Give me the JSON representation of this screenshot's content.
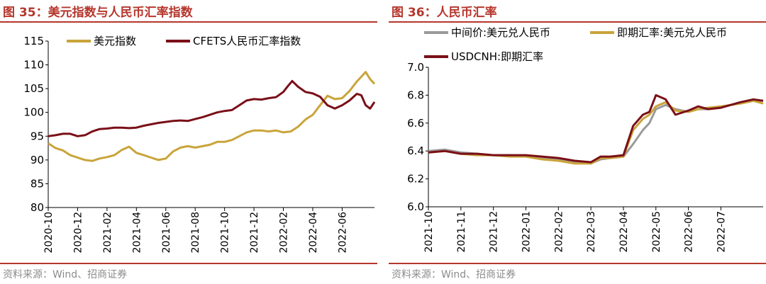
{
  "left": {
    "title": "图 35：美元指数与人民币汇率指数",
    "source": "资料来源：Wind、招商证券"
  },
  "right": {
    "title": "图 36：人民币汇率",
    "source": "资料来源：Wind、招商证券"
  },
  "colors": {
    "accent": "#b5362c",
    "gold": "#c9a43a",
    "darkred": "#7a0f18",
    "gray": "#9a9a9a"
  },
  "chart_data": [
    {
      "type": "line",
      "title": "美元指数与人民币汇率指数",
      "ylim": [
        80,
        115
      ],
      "yticks": [
        80,
        85,
        90,
        95,
        100,
        105,
        110,
        115
      ],
      "xlim": [
        0,
        22.2
      ],
      "xticks": [
        {
          "pos": 0,
          "label": "2020-10"
        },
        {
          "pos": 2,
          "label": "2020-12"
        },
        {
          "pos": 4,
          "label": "2021-02"
        },
        {
          "pos": 6,
          "label": "2021-04"
        },
        {
          "pos": 8,
          "label": "2021-06"
        },
        {
          "pos": 10,
          "label": "2021-08"
        },
        {
          "pos": 12,
          "label": "2021-10"
        },
        {
          "pos": 14,
          "label": "2021-12"
        },
        {
          "pos": 16,
          "label": "2022-02"
        },
        {
          "pos": 18,
          "label": "2022-04"
        },
        {
          "pos": 20,
          "label": "2022-06"
        }
      ],
      "legend_position": "top",
      "series": [
        {
          "name": "美元指数",
          "color": "#c9a43a",
          "x": [
            0,
            0.5,
            1,
            1.5,
            2,
            2.5,
            3,
            3.5,
            4,
            4.5,
            5,
            5.5,
            6,
            6.5,
            7,
            7.5,
            8,
            8.5,
            9,
            9.5,
            10,
            10.5,
            11,
            11.5,
            12,
            12.5,
            13,
            13.5,
            14,
            14.5,
            15,
            15.5,
            16,
            16.5,
            17,
            17.5,
            18,
            18.5,
            19,
            19.5,
            20,
            20.5,
            21,
            21.3,
            21.6,
            21.9,
            22.2
          ],
          "values": [
            93.5,
            92.5,
            92.0,
            91.0,
            90.5,
            90.0,
            89.8,
            90.3,
            90.6,
            91.0,
            92.1,
            92.8,
            91.5,
            91.0,
            90.5,
            90.0,
            90.3,
            91.8,
            92.6,
            92.9,
            92.6,
            92.9,
            93.2,
            93.8,
            93.8,
            94.2,
            95.0,
            95.8,
            96.2,
            96.2,
            96.0,
            96.2,
            95.8,
            96.0,
            97.0,
            98.5,
            99.5,
            101.5,
            103.5,
            102.8,
            103.0,
            104.5,
            106.5,
            107.5,
            108.5,
            107.0,
            106.0
          ]
        },
        {
          "name": "CFETS人民币汇率指数",
          "color": "#7a0f18",
          "x": [
            0,
            0.5,
            1,
            1.5,
            2,
            2.5,
            3,
            3.5,
            4,
            4.5,
            5,
            5.5,
            6,
            6.5,
            7,
            7.5,
            8,
            8.5,
            9,
            9.5,
            10,
            10.5,
            11,
            11.5,
            12,
            12.5,
            13,
            13.5,
            14,
            14.5,
            15,
            15.5,
            16,
            16.3,
            16.6,
            17,
            17.5,
            18,
            18.5,
            19,
            19.5,
            20,
            20.5,
            21,
            21.3,
            21.6,
            21.9,
            22.2
          ],
          "values": [
            95.0,
            95.2,
            95.5,
            95.5,
            95.0,
            95.2,
            96.0,
            96.5,
            96.6,
            96.8,
            96.8,
            96.7,
            96.8,
            97.2,
            97.5,
            97.8,
            98.0,
            98.2,
            98.3,
            98.2,
            98.6,
            99.0,
            99.5,
            100.0,
            100.3,
            100.5,
            101.5,
            102.5,
            102.8,
            102.7,
            103.0,
            103.2,
            104.3,
            105.5,
            106.6,
            105.4,
            104.3,
            104.0,
            103.3,
            101.5,
            100.8,
            101.5,
            102.5,
            103.9,
            103.6,
            101.5,
            100.8,
            102.2
          ]
        }
      ]
    },
    {
      "type": "line",
      "title": "人民币汇率",
      "ylim": [
        6.0,
        7.0
      ],
      "yticks": [
        6.0,
        6.2,
        6.4,
        6.6,
        6.8,
        7.0
      ],
      "ytick_labels": [
        "6.0",
        "6.2",
        "6.4",
        "6.6",
        "6.8",
        "7.0"
      ],
      "xlim": [
        0,
        10.3
      ],
      "xticks": [
        {
          "pos": 0,
          "label": "2021-10"
        },
        {
          "pos": 1,
          "label": "2021-11"
        },
        {
          "pos": 2,
          "label": "2021-12"
        },
        {
          "pos": 3,
          "label": "2022-01"
        },
        {
          "pos": 4,
          "label": "2022-02"
        },
        {
          "pos": 5,
          "label": "2022-03"
        },
        {
          "pos": 6,
          "label": "2022-04"
        },
        {
          "pos": 7,
          "label": "2022-05"
        },
        {
          "pos": 8,
          "label": "2022-06"
        },
        {
          "pos": 9,
          "label": "2022-07"
        }
      ],
      "legend_position": "top",
      "series": [
        {
          "name": "中间价:美元兑人民币",
          "color": "#9a9a9a",
          "x": [
            0,
            0.5,
            1,
            1.5,
            2,
            2.5,
            3,
            3.5,
            4,
            4.5,
            5,
            5.3,
            5.6,
            6,
            6.3,
            6.6,
            6.8,
            7,
            7.3,
            7.6,
            8,
            8.3,
            8.6,
            9,
            9.3,
            9.6,
            10,
            10.3
          ],
          "values": [
            6.4,
            6.41,
            6.39,
            6.38,
            6.37,
            6.37,
            6.36,
            6.35,
            6.34,
            6.32,
            6.31,
            6.34,
            6.35,
            6.36,
            6.45,
            6.55,
            6.6,
            6.7,
            6.73,
            6.7,
            6.68,
            6.7,
            6.7,
            6.71,
            6.73,
            6.74,
            6.76,
            6.76
          ]
        },
        {
          "name": "即期汇率:美元兑人民币",
          "color": "#c9a43a",
          "x": [
            0,
            0.5,
            1,
            1.5,
            2,
            2.5,
            3,
            3.5,
            4,
            4.5,
            5,
            5.3,
            5.6,
            6,
            6.3,
            6.6,
            6.8,
            7,
            7.3,
            7.6,
            8,
            8.3,
            8.6,
            9,
            9.3,
            9.6,
            10,
            10.3
          ],
          "values": [
            6.39,
            6.4,
            6.38,
            6.37,
            6.37,
            6.36,
            6.36,
            6.34,
            6.33,
            6.31,
            6.31,
            6.35,
            6.35,
            6.36,
            6.55,
            6.63,
            6.66,
            6.72,
            6.75,
            6.69,
            6.68,
            6.7,
            6.71,
            6.72,
            6.73,
            6.74,
            6.76,
            6.74
          ]
        },
        {
          "name": "USDCNH:即期汇率",
          "color": "#7a0f18",
          "x": [
            0,
            0.5,
            1,
            1.5,
            2,
            2.5,
            3,
            3.5,
            4,
            4.5,
            5,
            5.3,
            5.6,
            6,
            6.3,
            6.6,
            6.8,
            7,
            7.3,
            7.6,
            8,
            8.3,
            8.6,
            9,
            9.3,
            9.6,
            10,
            10.3
          ],
          "values": [
            6.39,
            6.4,
            6.38,
            6.38,
            6.37,
            6.37,
            6.37,
            6.36,
            6.35,
            6.33,
            6.32,
            6.36,
            6.36,
            6.37,
            6.58,
            6.66,
            6.68,
            6.8,
            6.77,
            6.66,
            6.69,
            6.72,
            6.7,
            6.71,
            6.73,
            6.75,
            6.77,
            6.76
          ]
        }
      ]
    }
  ]
}
